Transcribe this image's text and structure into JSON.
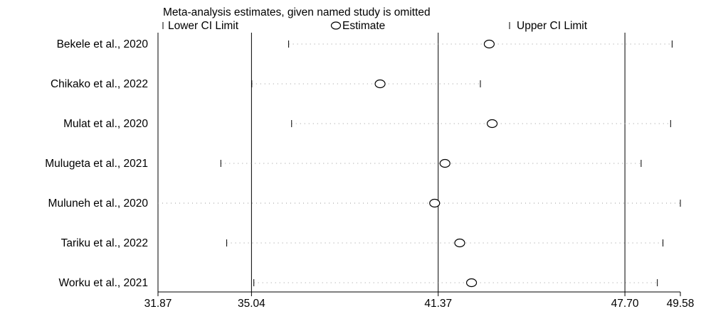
{
  "chart_data": {
    "type": "scatter",
    "title": "Meta-analysis estimates, given named study is omitted",
    "legend": {
      "placement": "top",
      "entries": [
        {
          "key": "lower",
          "symbol": "tick",
          "label": "Lower CI Limit"
        },
        {
          "key": "estimate",
          "symbol": "circle",
          "label": "Estimate"
        },
        {
          "key": "upper",
          "symbol": "tick",
          "label": "Upper CI Limit"
        }
      ]
    },
    "xlim": [
      31.87,
      49.58
    ],
    "xticks": [
      31.87,
      35.04,
      41.37,
      47.7,
      49.58
    ],
    "xtick_labels": [
      "31.87",
      "35.04",
      "41.37",
      "47.70",
      "49.58"
    ],
    "reference_lines": [
      35.04,
      41.37,
      47.7
    ],
    "studies": [
      {
        "label": "Bekele et al., 2020",
        "lower": 36.3,
        "estimate": 43.1,
        "upper": 49.3
      },
      {
        "label": "Chikako et al., 2022",
        "lower": 35.05,
        "estimate": 39.4,
        "upper": 42.8
      },
      {
        "label": "Mulat et al., 2020",
        "lower": 36.4,
        "estimate": 43.2,
        "upper": 49.25
      },
      {
        "label": "Mulugeta et al., 2021",
        "lower": 34.0,
        "estimate": 41.6,
        "upper": 48.25
      },
      {
        "label": "Muluneh et al., 2020",
        "lower": null,
        "estimate": 41.25,
        "upper": 49.58
      },
      {
        "label": "Tariku et al., 2022",
        "lower": 34.2,
        "estimate": 42.1,
        "upper": 48.99
      },
      {
        "label": "Worku et al., 2021",
        "lower": 35.12,
        "estimate": 42.5,
        "upper": 48.8
      }
    ]
  }
}
